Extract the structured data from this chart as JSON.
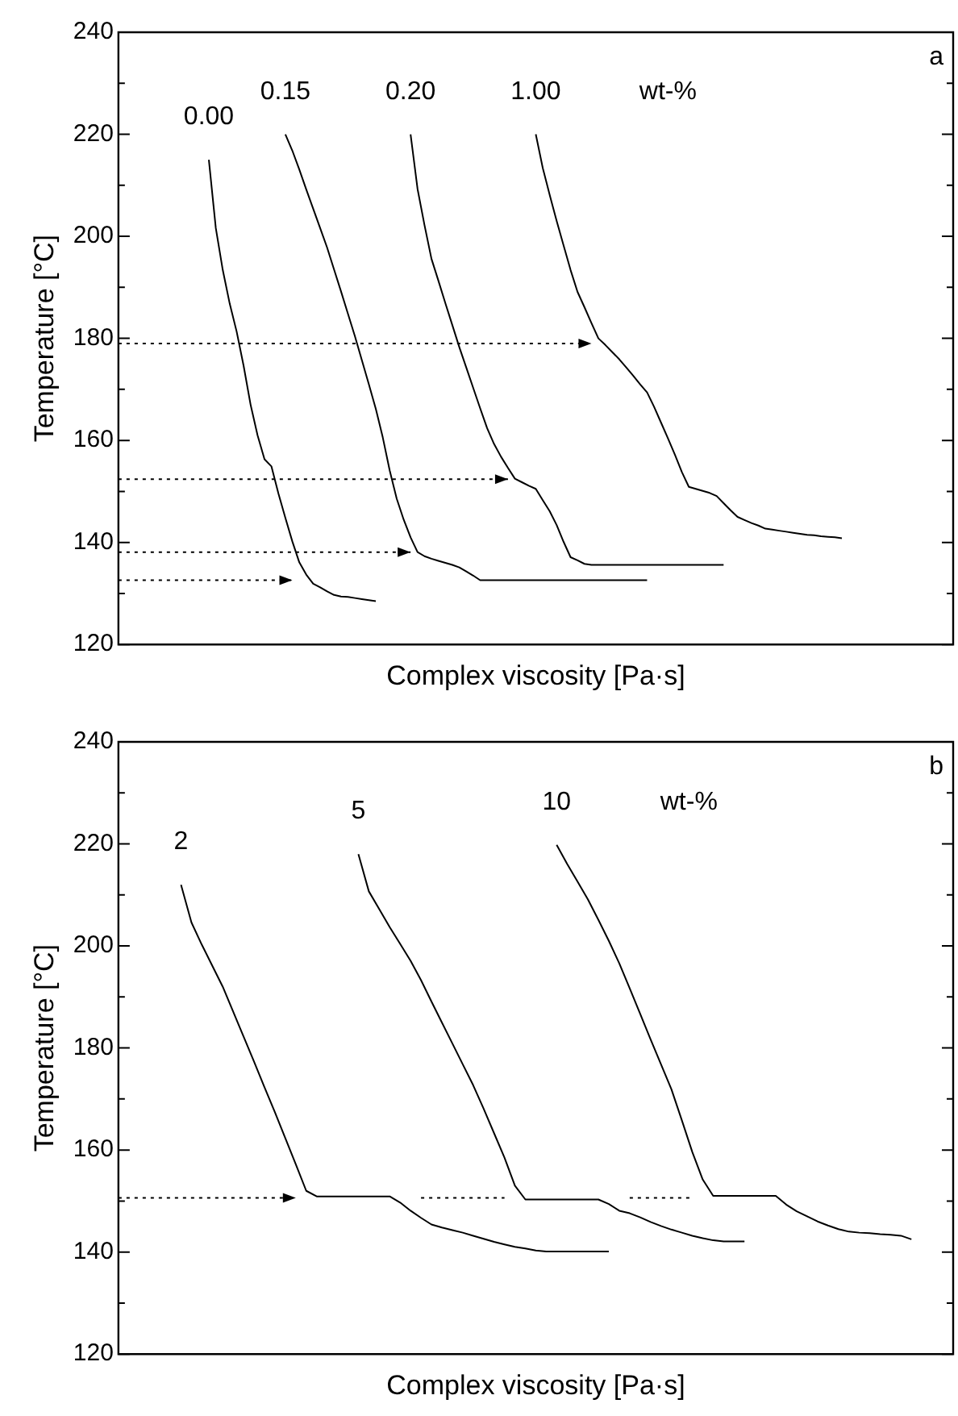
{
  "chart_data": [
    {
      "type": "line",
      "xlabel": "Complex viscosity [Pa·s]",
      "ylabel": "Temperature [°C]",
      "grid": false,
      "marker": "none",
      "tick_labels": "y",
      "categories": [
        null,
        null,
        null,
        null,
        null,
        null,
        null,
        null,
        null,
        null,
        null,
        null,
        null,
        null,
        null,
        null,
        null,
        null,
        null,
        null,
        null,
        null,
        null,
        null,
        null,
        null,
        null,
        null,
        null,
        null,
        null,
        null,
        null,
        null,
        null,
        null,
        null,
        null,
        null,
        null,
        null,
        null,
        null,
        null,
        null,
        null,
        null,
        null,
        null,
        null,
        null,
        null,
        null,
        null,
        null,
        null,
        null,
        null,
        null,
        null,
        null,
        null,
        null,
        null,
        null,
        null,
        null,
        null,
        null,
        null,
        null,
        null,
        null,
        null,
        null,
        null,
        null,
        null,
        null,
        null,
        null,
        null,
        null,
        null,
        null,
        null,
        null,
        null,
        null,
        null,
        null,
        null,
        null,
        null,
        null,
        null,
        null,
        null,
        null,
        null,
        null,
        null,
        null,
        null,
        null,
        null,
        null,
        null,
        null,
        null,
        null,
        null,
        null,
        null,
        null,
        null,
        null,
        null,
        null,
        null,
        null
      ],
      "ylim": [
        120,
        240
      ],
      "yticks": [
        120,
        {
          "value": 130,
          "label": null
        },
        140,
        {
          "value": 150,
          "label": null
        },
        160,
        {
          "value": 170,
          "label": null
        },
        180,
        {
          "value": 190,
          "label": null
        },
        200,
        {
          "value": 210,
          "label": null
        },
        220,
        {
          "value": 230,
          "label": null
        },
        240
      ],
      "annotations": [
        "wt-%",
        "a"
      ],
      "series": [
        {
          "name": "0.00",
          "color": "#000000",
          "values": [
            null,
            null,
            null,
            null,
            null,
            null,
            null,
            null,
            null,
            null,
            null,
            null,
            null,
            215,
            201.6,
            193.4,
            186.8,
            181.3,
            174.6,
            167,
            161,
            156.3,
            154.9,
            149.6,
            144.8,
            140.2,
            136.1,
            133.7,
            131.9,
            131.2,
            130.4,
            129.7,
            129.4,
            129.3,
            129.1,
            128.9,
            128.7,
            128.5,
            null,
            null,
            null,
            null,
            null,
            null,
            null,
            null,
            null,
            null,
            null,
            null,
            null,
            null,
            null,
            null,
            null,
            null,
            null,
            null,
            null,
            null,
            null,
            null,
            null,
            null,
            null,
            null,
            null,
            null,
            null,
            null,
            null,
            null,
            null,
            null,
            null,
            null,
            null,
            null,
            null,
            null,
            null,
            null,
            null,
            null,
            null,
            null,
            null,
            null,
            null,
            null,
            null,
            null,
            null,
            null,
            null,
            null,
            null,
            null,
            null,
            null,
            null,
            null,
            null,
            null,
            null,
            null,
            null,
            null,
            null,
            null,
            null,
            null,
            null,
            null,
            null,
            null,
            null,
            null,
            null,
            null,
            null
          ]
        },
        {
          "name": "0.15",
          "color": "#000000",
          "values": [
            null,
            null,
            null,
            null,
            null,
            null,
            null,
            null,
            null,
            null,
            null,
            null,
            null,
            null,
            null,
            null,
            null,
            null,
            null,
            null,
            null,
            null,
            null,
            null,
            220,
            216.8,
            213.1,
            209.2,
            205.4,
            201.6,
            197.8,
            193.5,
            189.2,
            184.8,
            180.4,
            175.7,
            171,
            166.2,
            160.6,
            154.1,
            148.6,
            144.5,
            141,
            138.1,
            137.3,
            136.8,
            136.4,
            136,
            135.6,
            135.1,
            134.3,
            133.5,
            132.6,
            132.6,
            132.6,
            132.6,
            132.6,
            132.6,
            132.6,
            132.6,
            132.6,
            132.6,
            132.6,
            132.6,
            132.6,
            132.6,
            132.6,
            132.6,
            132.6,
            132.6,
            132.6,
            132.6,
            132.6,
            132.6,
            132.6,
            132.6,
            132.6,
            null,
            null,
            null,
            null,
            null,
            null,
            null,
            null,
            null,
            null,
            null,
            null,
            null,
            null,
            null,
            null,
            null,
            null,
            null,
            null,
            null,
            null,
            null,
            null,
            null,
            null,
            null,
            null,
            null,
            null,
            null,
            null,
            null,
            null,
            null,
            null,
            null,
            null,
            null,
            null,
            null,
            null,
            null,
            null
          ]
        },
        {
          "name": "0.20",
          "color": "#000000",
          "values": [
            null,
            null,
            null,
            null,
            null,
            null,
            null,
            null,
            null,
            null,
            null,
            null,
            null,
            null,
            null,
            null,
            null,
            null,
            null,
            null,
            null,
            null,
            null,
            null,
            null,
            null,
            null,
            null,
            null,
            null,
            null,
            null,
            null,
            null,
            null,
            null,
            null,
            null,
            null,
            null,
            null,
            null,
            220,
            209.3,
            202.2,
            195.6,
            191.3,
            186.9,
            182.6,
            178.3,
            174.3,
            170.3,
            166.3,
            162.4,
            159.3,
            156.8,
            154.6,
            152.5,
            151.8,
            151.1,
            150.5,
            148.3,
            146.1,
            143.4,
            140.1,
            137.1,
            136.5,
            135.8,
            135.6,
            135.6,
            135.6,
            135.6,
            135.6,
            135.6,
            135.6,
            135.6,
            135.6,
            135.6,
            135.6,
            135.6,
            135.6,
            135.6,
            135.6,
            135.6,
            135.6,
            135.6,
            135.6,
            135.6,
            null,
            null,
            null,
            null,
            null,
            null,
            null,
            null,
            null,
            null,
            null,
            null,
            null,
            null,
            null,
            null,
            null,
            null,
            null,
            null,
            null,
            null,
            null,
            null,
            null,
            null,
            null,
            null,
            null,
            null,
            null,
            null,
            null
          ]
        },
        {
          "name": "1.00",
          "color": "#000000",
          "values": [
            null,
            null,
            null,
            null,
            null,
            null,
            null,
            null,
            null,
            null,
            null,
            null,
            null,
            null,
            null,
            null,
            null,
            null,
            null,
            null,
            null,
            null,
            null,
            null,
            null,
            null,
            null,
            null,
            null,
            null,
            null,
            null,
            null,
            null,
            null,
            null,
            null,
            null,
            null,
            null,
            null,
            null,
            null,
            null,
            null,
            null,
            null,
            null,
            null,
            null,
            null,
            null,
            null,
            null,
            null,
            null,
            null,
            null,
            null,
            null,
            220,
            213.4,
            208.1,
            203,
            198.2,
            193.4,
            189.1,
            186.1,
            183,
            180,
            178.7,
            177.3,
            175.9,
            174.3,
            172.7,
            171,
            169.4,
            166.6,
            163.5,
            160.4,
            157.2,
            153.8,
            150.9,
            150.5,
            150.1,
            149.7,
            149.1,
            147.7,
            146.3,
            145,
            144.4,
            143.8,
            143.3,
            142.7,
            142.5,
            142.3,
            142.1,
            141.9,
            141.7,
            141.5,
            141.4,
            141.2,
            141.1,
            141,
            140.8,
            null,
            null,
            null,
            null,
            null,
            null,
            null,
            null,
            null,
            null,
            null,
            null,
            null,
            null,
            null,
            null
          ]
        },
        {
          "color": "#000000",
          "line_style": "dotted",
          "values": [
            179,
            179,
            179,
            179,
            179,
            179,
            179,
            179,
            179,
            179,
            179,
            179,
            179,
            179,
            179,
            179,
            179,
            179,
            179,
            179,
            179,
            179,
            179,
            179,
            179,
            179,
            179,
            179,
            179,
            179,
            179,
            179,
            179,
            179,
            179,
            179,
            179,
            179,
            179,
            179,
            179,
            179,
            179,
            179,
            179,
            179,
            179,
            179,
            179,
            179,
            179,
            179,
            179,
            179,
            179,
            179,
            179,
            179,
            179,
            179,
            179,
            179,
            179,
            179,
            179,
            179,
            179,
            179,
            179,
            null,
            null,
            null,
            null,
            null,
            null,
            null,
            null,
            null,
            null,
            null,
            null,
            null,
            null,
            null,
            null,
            null,
            null,
            null,
            null,
            null,
            null,
            null,
            null,
            null,
            null,
            null,
            null,
            null,
            null,
            null,
            null,
            null,
            null,
            null,
            null,
            null,
            null,
            null,
            null,
            null,
            null,
            null,
            null,
            null,
            null,
            null,
            null,
            null,
            null,
            null,
            null
          ]
        },
        {
          "color": "#000000",
          "line_style": "dotted",
          "values": [
            152.4,
            152.4,
            152.4,
            152.4,
            152.4,
            152.4,
            152.4,
            152.4,
            152.4,
            152.4,
            152.4,
            152.4,
            152.4,
            152.4,
            152.4,
            152.4,
            152.4,
            152.4,
            152.4,
            152.4,
            152.4,
            152.4,
            152.4,
            152.4,
            152.4,
            152.4,
            152.4,
            152.4,
            152.4,
            152.4,
            152.4,
            152.4,
            152.4,
            152.4,
            152.4,
            152.4,
            152.4,
            152.4,
            152.4,
            152.4,
            152.4,
            152.4,
            152.4,
            152.4,
            152.4,
            152.4,
            152.4,
            152.4,
            152.4,
            152.4,
            152.4,
            152.4,
            152.4,
            152.4,
            152.4,
            152.4,
            152.4,
            null,
            null,
            null,
            null,
            null,
            null,
            null,
            null,
            null,
            null,
            null,
            null,
            null,
            null,
            null,
            null,
            null,
            null,
            null,
            null,
            null,
            null,
            null,
            null,
            null,
            null,
            null,
            null,
            null,
            null,
            null,
            null,
            null,
            null,
            null,
            null,
            null,
            null,
            null,
            null,
            null,
            null,
            null,
            null,
            null,
            null,
            null,
            null,
            null,
            null,
            null,
            null,
            null,
            null,
            null,
            null,
            null,
            null,
            null,
            null,
            null,
            null,
            null,
            null
          ]
        },
        {
          "color": "#000000",
          "line_style": "dotted",
          "values": [
            138.1,
            138.1,
            138.1,
            138.1,
            138.1,
            138.1,
            138.1,
            138.1,
            138.1,
            138.1,
            138.1,
            138.1,
            138.1,
            138.1,
            138.1,
            138.1,
            138.1,
            138.1,
            138.1,
            138.1,
            138.1,
            138.1,
            138.1,
            138.1,
            138.1,
            138.1,
            138.1,
            138.1,
            138.1,
            138.1,
            138.1,
            138.1,
            138.1,
            138.1,
            138.1,
            138.1,
            138.1,
            138.1,
            138.1,
            138.1,
            138.1,
            138.1,
            138.1,
            null,
            null,
            null,
            null,
            null,
            null,
            null,
            null,
            null,
            null,
            null,
            null,
            null,
            null,
            null,
            null,
            null,
            null,
            null,
            null,
            null,
            null,
            null,
            null,
            null,
            null,
            null,
            null,
            null,
            null,
            null,
            null,
            null,
            null,
            null,
            null,
            null,
            null,
            null,
            null,
            null,
            null,
            null,
            null,
            null,
            null,
            null,
            null,
            null,
            null,
            null,
            null,
            null,
            null,
            null,
            null,
            null,
            null,
            null,
            null,
            null,
            null,
            null,
            null,
            null,
            null,
            null,
            null,
            null,
            null,
            null,
            null,
            null,
            null,
            null,
            null,
            null,
            null
          ]
        },
        {
          "color": "#000000",
          "line_style": "dotted",
          "values": [
            132.6,
            132.6,
            132.6,
            132.6,
            132.6,
            132.6,
            132.6,
            132.6,
            132.6,
            132.6,
            132.6,
            132.6,
            132.6,
            132.6,
            132.6,
            132.6,
            132.6,
            132.6,
            132.6,
            132.6,
            132.6,
            132.6,
            132.6,
            132.6,
            132.6,
            132.6,
            null,
            null,
            null,
            null,
            null,
            null,
            null,
            null,
            null,
            null,
            null,
            null,
            null,
            null,
            null,
            null,
            null,
            null,
            null,
            null,
            null,
            null,
            null,
            null,
            null,
            null,
            null,
            null,
            null,
            null,
            null,
            null,
            null,
            null,
            null,
            null,
            null,
            null,
            null,
            null,
            null,
            null,
            null,
            null,
            null,
            null,
            null,
            null,
            null,
            null,
            null,
            null,
            null,
            null,
            null,
            null,
            null,
            null,
            null,
            null,
            null,
            null,
            null,
            null,
            null,
            null,
            null,
            null,
            null,
            null,
            null,
            null,
            null,
            null,
            null,
            null,
            null,
            null,
            null,
            null,
            null,
            null,
            null,
            null,
            null,
            null,
            null,
            null,
            null,
            null,
            null,
            null,
            null,
            null,
            null
          ]
        }
      ]
    },
    {
      "type": "line",
      "xlabel": "Complex viscosity [Pa·s]",
      "ylabel": "Temperature [°C]",
      "grid": false,
      "marker": "none",
      "tick_labels": "y",
      "categories": [
        null,
        null,
        null,
        null,
        null,
        null,
        null,
        null,
        null,
        null,
        null,
        null,
        null,
        null,
        null,
        null,
        null,
        null,
        null,
        null,
        null,
        null,
        null,
        null,
        null,
        null,
        null,
        null,
        null,
        null,
        null,
        null,
        null,
        null,
        null,
        null,
        null,
        null,
        null,
        null,
        null,
        null,
        null,
        null,
        null,
        null,
        null,
        null,
        null,
        null,
        null,
        null,
        null,
        null,
        null,
        null,
        null,
        null,
        null,
        null,
        null,
        null,
        null,
        null,
        null,
        null,
        null,
        null,
        null,
        null,
        null,
        null,
        null,
        null,
        null,
        null,
        null,
        null,
        null,
        null,
        null
      ],
      "ylim": [
        120,
        240
      ],
      "yticks": [
        120,
        {
          "value": 130,
          "label": null
        },
        140,
        {
          "value": 150,
          "label": null
        },
        160,
        {
          "value": 170,
          "label": null
        },
        180,
        {
          "value": 190,
          "label": null
        },
        200,
        {
          "value": 210,
          "label": null
        },
        220,
        {
          "value": 230,
          "label": null
        },
        240
      ],
      "annotations": [
        "wt-%",
        "b"
      ],
      "series": [
        {
          "name": "2",
          "color": "#000000",
          "values": [
            null,
            null,
            null,
            null,
            null,
            null,
            212,
            204.6,
            200.2,
            196.1,
            192,
            187.1,
            182.2,
            177.3,
            172.3,
            167.4,
            162.3,
            157.2,
            152,
            150.9,
            150.9,
            150.9,
            150.9,
            150.9,
            150.9,
            150.9,
            150.9,
            149.7,
            148.1,
            146.7,
            145.4,
            144.8,
            144.3,
            143.8,
            143.2,
            142.6,
            142,
            141.5,
            141,
            140.7,
            140.3,
            140.1,
            140.1,
            140.1,
            140.1,
            140.1,
            140.1,
            140.1,
            null,
            null,
            null,
            null,
            null,
            null,
            null,
            null,
            null,
            null,
            null,
            null,
            null,
            null,
            null,
            null,
            null,
            null,
            null,
            null,
            null,
            null,
            null,
            null,
            null,
            null,
            null,
            null,
            null,
            null,
            null,
            null,
            null
          ]
        },
        {
          "name": "5",
          "color": "#000000",
          "values": [
            null,
            null,
            null,
            null,
            null,
            null,
            null,
            null,
            null,
            null,
            null,
            null,
            null,
            null,
            null,
            null,
            null,
            null,
            null,
            null,
            null,
            null,
            null,
            218,
            210.7,
            207.2,
            203.7,
            200.4,
            197.1,
            193.3,
            189.1,
            185,
            180.9,
            176.8,
            172.7,
            168.1,
            163.3,
            158.5,
            153,
            150.3,
            150.3,
            150.3,
            150.3,
            150.3,
            150.3,
            150.3,
            150.3,
            149.4,
            148.1,
            147.6,
            146.8,
            145.9,
            145.1,
            144.4,
            143.8,
            143.2,
            142.7,
            142.3,
            142.1,
            142.1,
            142.1,
            null,
            null,
            null,
            null,
            null,
            null,
            null,
            null,
            null,
            null,
            null,
            null,
            null,
            null,
            null,
            null,
            null,
            null,
            null,
            null
          ]
        },
        {
          "name": "10",
          "color": "#000000",
          "values": [
            null,
            null,
            null,
            null,
            null,
            null,
            null,
            null,
            null,
            null,
            null,
            null,
            null,
            null,
            null,
            null,
            null,
            null,
            null,
            null,
            null,
            null,
            null,
            null,
            null,
            null,
            null,
            null,
            null,
            null,
            null,
            null,
            null,
            null,
            null,
            null,
            null,
            null,
            null,
            null,
            null,
            null,
            219.8,
            216.1,
            212.6,
            209.1,
            205.1,
            201,
            196.6,
            191.7,
            186.7,
            181.7,
            176.8,
            171.9,
            165.8,
            159.6,
            154.2,
            151,
            151,
            151,
            151,
            151,
            151,
            151,
            149.3,
            148,
            147,
            146,
            145.2,
            144.5,
            144,
            143.8,
            143.7,
            143.5,
            143.4,
            143.2,
            142.5,
            null,
            null,
            null,
            null
          ]
        },
        {
          "color": "#000000",
          "line_style": "dotted",
          "values": [
            150.6,
            150.6,
            150.6,
            150.6,
            150.6,
            150.6,
            150.6,
            150.6,
            150.6,
            150.6,
            150.6,
            150.6,
            150.6,
            150.6,
            150.6,
            150.6,
            150.6,
            150.6,
            null,
            null,
            null,
            null,
            null,
            null,
            null,
            null,
            null,
            null,
            null,
            null,
            null,
            null,
            null,
            null,
            null,
            null,
            null,
            null,
            null,
            null,
            null,
            null,
            null,
            null,
            null,
            null,
            null,
            null,
            null,
            null,
            null,
            null,
            null,
            null,
            null,
            null,
            null,
            null,
            null,
            null,
            null,
            null,
            null,
            null,
            null,
            null,
            null,
            null,
            null,
            null,
            null,
            null,
            null,
            null,
            null,
            null,
            null,
            null,
            null,
            null,
            null
          ]
        },
        {
          "color": "#000000",
          "line_style": "dotted",
          "values": [
            null,
            null,
            null,
            null,
            null,
            null,
            null,
            null,
            null,
            null,
            null,
            null,
            null,
            null,
            null,
            null,
            null,
            null,
            null,
            null,
            null,
            null,
            null,
            null,
            null,
            null,
            null,
            null,
            null,
            150.6,
            150.6,
            150.6,
            150.6,
            150.6,
            150.6,
            150.6,
            150.6,
            150.6,
            null,
            null,
            null,
            null,
            null,
            null,
            null,
            null,
            null,
            null,
            null,
            null,
            null,
            null,
            null,
            null,
            null,
            null,
            null,
            null,
            null,
            null,
            null,
            null,
            null,
            null,
            null,
            null,
            null,
            null,
            null,
            null,
            null,
            null,
            null,
            null,
            null,
            null,
            null,
            null,
            null,
            null,
            null
          ]
        },
        {
          "color": "#000000",
          "line_style": "dotted",
          "values": [
            null,
            null,
            null,
            null,
            null,
            null,
            null,
            null,
            null,
            null,
            null,
            null,
            null,
            null,
            null,
            null,
            null,
            null,
            null,
            null,
            null,
            null,
            null,
            null,
            null,
            null,
            null,
            null,
            null,
            null,
            null,
            null,
            null,
            null,
            null,
            null,
            null,
            null,
            null,
            null,
            null,
            null,
            null,
            null,
            null,
            null,
            null,
            null,
            null,
            150.6,
            150.6,
            150.6,
            150.6,
            150.6,
            150.6,
            150.6,
            null,
            null,
            null,
            null,
            null,
            null,
            null,
            null,
            null,
            null,
            null,
            null,
            null,
            null,
            null,
            null,
            null,
            null,
            null,
            null,
            null,
            null,
            null,
            null,
            null
          ]
        }
      ]
    }
  ]
}
